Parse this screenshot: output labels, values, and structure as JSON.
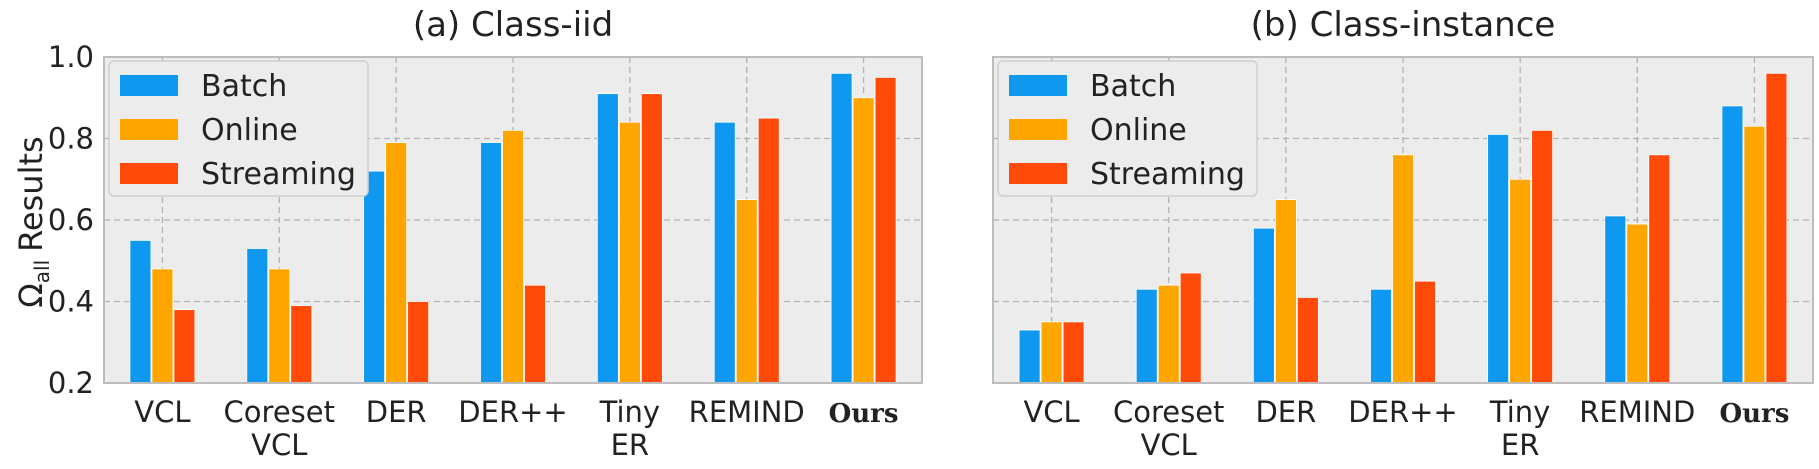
{
  "ylabel_text": "Results",
  "ylabel_symbol": "Ω",
  "ylabel_subscript": "all",
  "colors": {
    "Batch": "#0f98f0",
    "Online": "#ffa500",
    "Streaming": "#ff4a0a",
    "plot_bg": "#ececec",
    "grid": "#b3b3b3",
    "frame": "#bdbdbd"
  },
  "chart_data": [
    {
      "type": "bar",
      "title": "(a) Class-iid",
      "categories": [
        [
          "VCL"
        ],
        [
          "Coreset",
          "VCL"
        ],
        [
          "DER"
        ],
        [
          "DER++"
        ],
        [
          "Tiny",
          "ER"
        ],
        [
          "REMIND"
        ],
        [
          "Ours"
        ]
      ],
      "series": [
        {
          "name": "Batch",
          "values": [
            0.55,
            0.53,
            0.72,
            0.79,
            0.91,
            0.84,
            0.96
          ]
        },
        {
          "name": "Online",
          "values": [
            0.48,
            0.48,
            0.79,
            0.82,
            0.84,
            0.65,
            0.9
          ]
        },
        {
          "name": "Streaming",
          "values": [
            0.38,
            0.39,
            0.4,
            0.44,
            0.91,
            0.85,
            0.95
          ]
        }
      ],
      "ylim": [
        0.2,
        1.0
      ],
      "yticks": [
        "0.2",
        "0.4",
        "0.6",
        "0.8",
        "1.0"
      ],
      "grid": true,
      "legend": "top-left"
    },
    {
      "type": "bar",
      "title": "(b) Class-instance",
      "categories": [
        [
          "VCL"
        ],
        [
          "Coreset",
          "VCL"
        ],
        [
          "DER"
        ],
        [
          "DER++"
        ],
        [
          "Tiny",
          "ER"
        ],
        [
          "REMIND"
        ],
        [
          "Ours"
        ]
      ],
      "series": [
        {
          "name": "Batch",
          "values": [
            0.33,
            0.43,
            0.58,
            0.43,
            0.81,
            0.61,
            0.88
          ]
        },
        {
          "name": "Online",
          "values": [
            0.35,
            0.44,
            0.65,
            0.76,
            0.7,
            0.59,
            0.83
          ]
        },
        {
          "name": "Streaming",
          "values": [
            0.35,
            0.47,
            0.41,
            0.45,
            0.82,
            0.76,
            0.96
          ]
        }
      ],
      "ylim": [
        0.2,
        1.0
      ],
      "yticks": [],
      "grid": true,
      "legend": "top-left"
    }
  ]
}
